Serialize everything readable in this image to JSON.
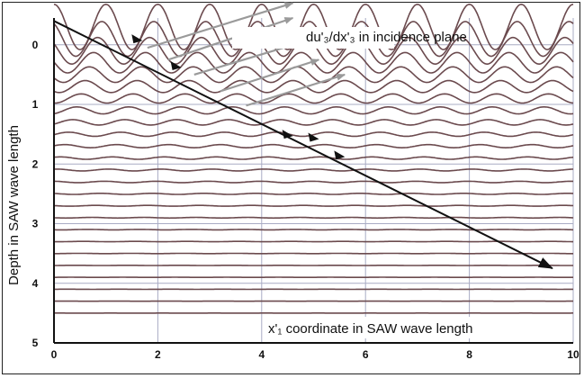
{
  "chart_data": {
    "type": "line",
    "title": "",
    "ylabel": "Depth in SAW wave length",
    "xlabel": "x'₁ coordinate in SAW wave length",
    "annotation_top": "du'₃/dx'₃  in incidence plane",
    "xlim": [
      0,
      10
    ],
    "ylim": [
      -0.45,
      5
    ],
    "y_inverted": true,
    "x_ticks": [
      "0",
      "2",
      "4",
      "6",
      "8",
      "10"
    ],
    "y_ticks": [
      "0",
      "1",
      "2",
      "3",
      "4",
      "5"
    ],
    "grid": true,
    "wave": {
      "wavelength": 1,
      "line_count": 25,
      "depth_start": -0.3,
      "depth_step": 0.2,
      "surface_amplitude": 0.38,
      "decay_length": 0.75
    },
    "ray": {
      "x": [
        0,
        9.6
      ],
      "y": [
        -0.4,
        3.75
      ]
    },
    "arrow_markers": [
      {
        "x": 1.6,
        "y": -0.1
      },
      {
        "x": 2.35,
        "y": 0.35
      },
      {
        "x": 4.5,
        "y": 1.5
      },
      {
        "x": 5,
        "y": 1.55
      },
      {
        "x": 5.5,
        "y": 1.85
      }
    ],
    "gradient_arrows": [
      {
        "x": [
          1.8,
          4.6
        ],
        "y": [
          0.05,
          -0.7
        ]
      },
      {
        "x": [
          2.2,
          4.6
        ],
        "y": [
          0.25,
          -0.45
        ]
      },
      {
        "x": [
          2.7,
          4.8
        ],
        "y": [
          0.5,
          -0.05
        ]
      },
      {
        "x": [
          3.2,
          5.1
        ],
        "y": [
          0.78,
          0.25
        ]
      },
      {
        "x": [
          3.7,
          5.6
        ],
        "y": [
          1.02,
          0.5
        ]
      }
    ],
    "colors": {
      "wave_line": "#6b4a4e",
      "grid": "#a9acc4",
      "ray": "#111111",
      "gradient_arrow": "#9a9a9a"
    }
  }
}
